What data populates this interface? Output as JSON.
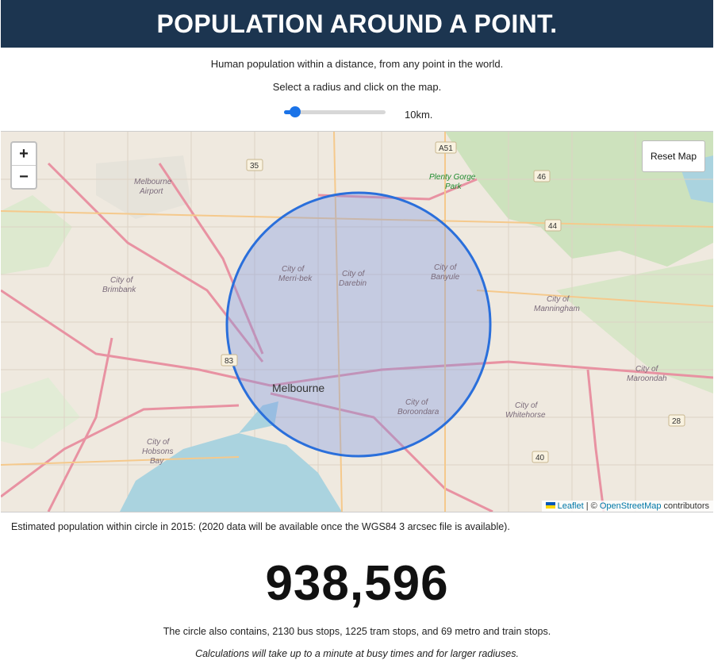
{
  "header": {
    "title": "POPULATION AROUND A POINT."
  },
  "intro": {
    "line1": "Human population within a distance, from any point in the world.",
    "line2": "Select a radius and click on the map."
  },
  "radius": {
    "value_km": 10,
    "label": "10km.",
    "slider_fraction": 0.11
  },
  "map": {
    "zoom_in": "+",
    "zoom_out": "−",
    "reset_label": "Reset Map",
    "attribution": {
      "leaflet": "Leaflet",
      "separator": " | © ",
      "osm": "OpenStreetMap",
      "suffix": " contributors"
    },
    "places": {
      "melbourne": "Melbourne",
      "airport_1": "Melbourne",
      "airport_2": "Airport",
      "plenty_1": "Plenty Gorge",
      "plenty_2": "Park",
      "brimbank_1": "City of",
      "brimbank_2": "Brimbank",
      "merri_1": "City of",
      "merri_2": "Merri-bek",
      "darebin_1": "City of",
      "darebin_2": "Darebin",
      "banyule_1": "City of",
      "banyule_2": "Banyule",
      "manningham_1": "City of",
      "manningham_2": "Manningham",
      "maroondah_1": "City of",
      "maroondah_2": "Maroondah",
      "whitehorse_1": "City of",
      "whitehorse_2": "Whitehorse",
      "boroondara_1": "City of",
      "boroondara_2": "Boroondara",
      "hobsons_1": "City of",
      "hobsons_2": "Hobsons",
      "hobsons_3": "Bay"
    },
    "shields": [
      "A51",
      "35",
      "46",
      "44",
      "83",
      "28",
      "40"
    ],
    "colors": {
      "circle": "#2a6fdb",
      "header": "#1c3550"
    }
  },
  "results": {
    "estimate_text": "Estimated population within circle in 2015: (2020 data will be available once the WGS84 3 arcsec file is available).",
    "population": "938,596",
    "stops_text": "The circle also contains, 2130 bus stops, 1225 tram stops, and 69 metro and train stops.",
    "note": "Calculations will take up to a minute at busy times and for larger radiuses."
  }
}
